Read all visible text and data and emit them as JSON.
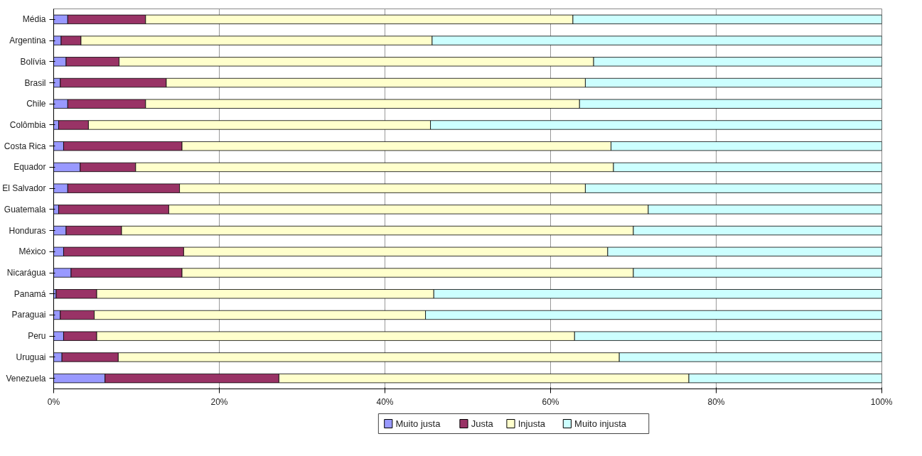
{
  "chart_data": {
    "type": "bar",
    "orientation": "horizontal",
    "stacked": true,
    "categories": [
      "Média",
      "Argentina",
      "Bolívia",
      "Brasil",
      "Chile",
      "Colômbia",
      "Costa Rica",
      "Equador",
      "El Salvador",
      "Guatemala",
      "Honduras",
      "México",
      "Nicarágua",
      "Panamá",
      "Paraguai",
      "Peru",
      "Uruguai",
      "Venezuela"
    ],
    "series": [
      {
        "name": "Muito justa",
        "color": "#9999ff",
        "values": [
          1.7,
          0.9,
          1.5,
          0.8,
          1.7,
          0.6,
          1.2,
          3.2,
          1.7,
          0.6,
          1.5,
          1.2,
          2.1,
          0.3,
          0.8,
          1.2,
          1.0,
          6.2
        ]
      },
      {
        "name": "Justa",
        "color": "#993366",
        "values": [
          9.4,
          2.4,
          6.4,
          12.8,
          9.4,
          3.6,
          14.3,
          6.7,
          13.5,
          13.3,
          6.7,
          14.5,
          13.4,
          4.9,
          4.1,
          4.0,
          6.8,
          21.0
        ]
      },
      {
        "name": "Injusta",
        "color": "#ffffcc",
        "values": [
          51.6,
          42.4,
          57.3,
          50.6,
          52.4,
          41.3,
          51.8,
          57.7,
          49.0,
          57.9,
          61.8,
          51.2,
          54.5,
          40.7,
          40.0,
          57.7,
          60.5,
          49.5
        ]
      },
      {
        "name": "Muito injusta",
        "color": "#ccffff",
        "values": [
          37.3,
          54.3,
          34.8,
          35.8,
          36.5,
          54.5,
          32.7,
          32.4,
          35.8,
          28.2,
          30.0,
          33.1,
          30.0,
          54.1,
          55.1,
          37.1,
          31.7,
          23.3
        ]
      }
    ],
    "xlim": [
      0,
      100
    ],
    "xticks": [
      {
        "value": 0,
        "label": "0%"
      },
      {
        "value": 20,
        "label": "20%"
      },
      {
        "value": 40,
        "label": "40%"
      },
      {
        "value": 60,
        "label": "60%"
      },
      {
        "value": 80,
        "label": "80%"
      },
      {
        "value": 100,
        "label": "100%"
      }
    ],
    "grid": "x",
    "legend": "bottom"
  }
}
